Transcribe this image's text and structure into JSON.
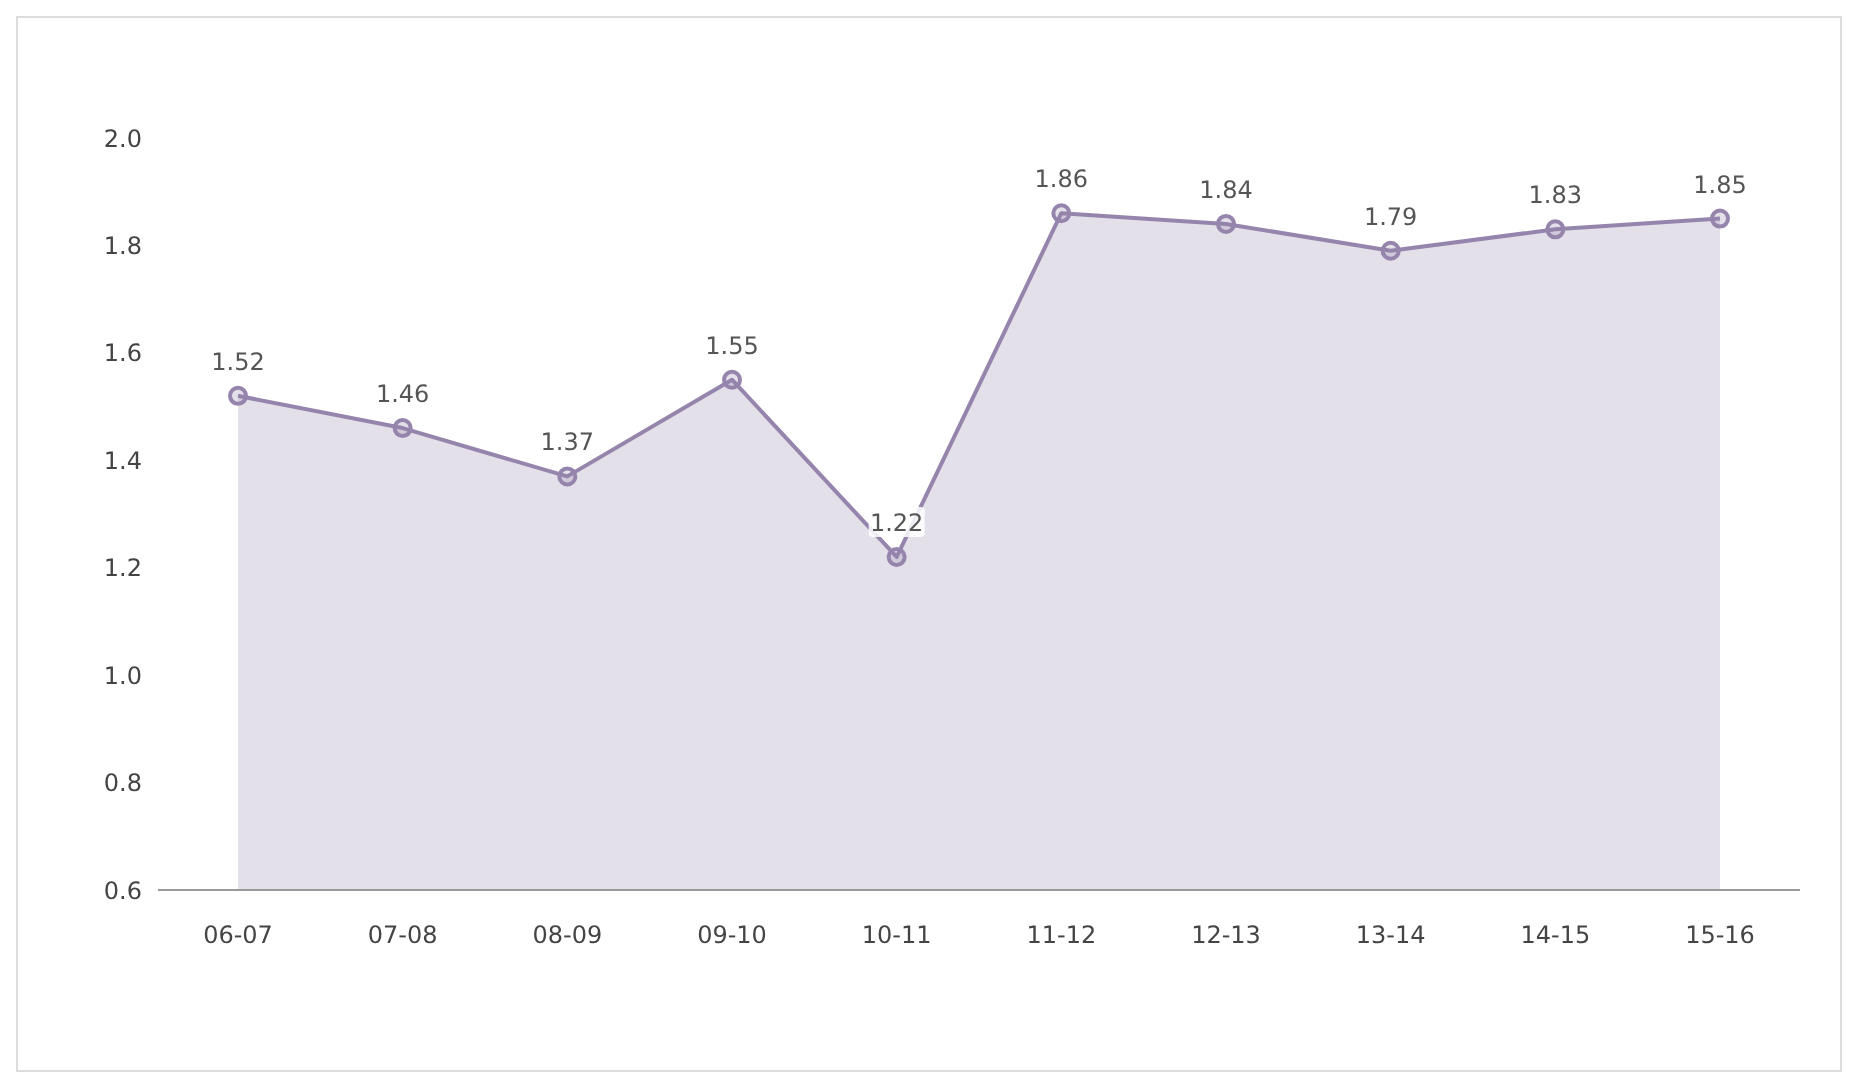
{
  "chart_data": {
    "type": "area",
    "categories": [
      "06-07",
      "07-08",
      "08-09",
      "09-10",
      "10-11",
      "11-12",
      "12-13",
      "13-14",
      "14-15",
      "15-16"
    ],
    "series": [
      {
        "color": "#9585ad",
        "values": [
          1.52,
          1.46,
          1.37,
          1.55,
          1.22,
          1.86,
          1.84,
          1.79,
          1.83,
          1.85
        ]
      }
    ],
    "ylim": [
      0.6,
      2.0
    ],
    "yticks": [
      {
        "value": 0.6,
        "label": "0.6"
      },
      {
        "value": 0.8,
        "label": "0.8"
      },
      {
        "value": 1.0,
        "label": "1.0"
      },
      {
        "value": 1.2,
        "label": "1.2"
      },
      {
        "value": 1.4,
        "label": "1.4"
      },
      {
        "value": 1.6,
        "label": "1.6"
      },
      {
        "value": 1.8,
        "label": "1.8"
      },
      {
        "value": 2.0,
        "label": "2.0"
      }
    ],
    "data_labels": true,
    "marker": "circle",
    "grid": false,
    "legend": false
  }
}
